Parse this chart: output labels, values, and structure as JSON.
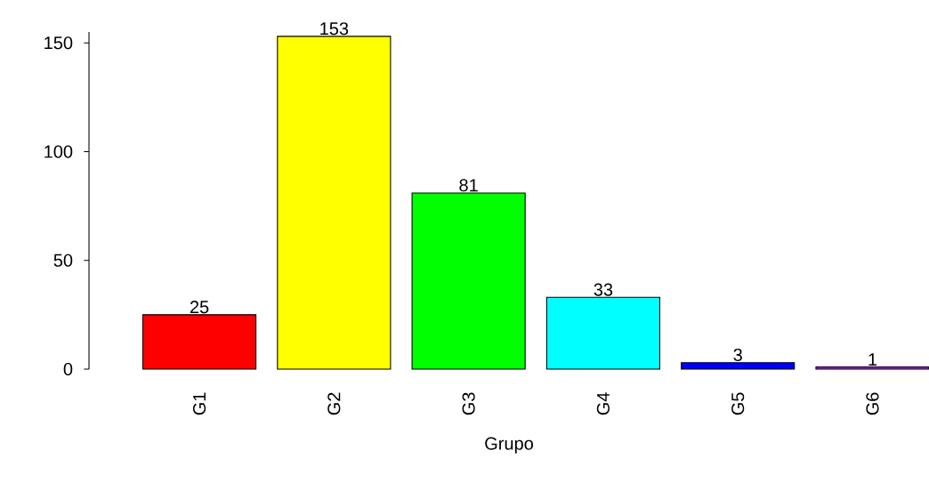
{
  "chart_data": {
    "type": "bar",
    "xlabel": "Grupo",
    "categories": [
      "G1",
      "G2",
      "G3",
      "G4",
      "G5",
      "G6"
    ],
    "values": [
      25,
      153,
      81,
      33,
      3,
      1
    ],
    "colors": [
      "#ff0000",
      "#ffff00",
      "#00ff00",
      "#00ffff",
      "#0000ff",
      "#a020f0"
    ],
    "ylim": [
      0,
      155
    ],
    "yticks": [
      0,
      50,
      100,
      150
    ],
    "data_labels": true
  }
}
